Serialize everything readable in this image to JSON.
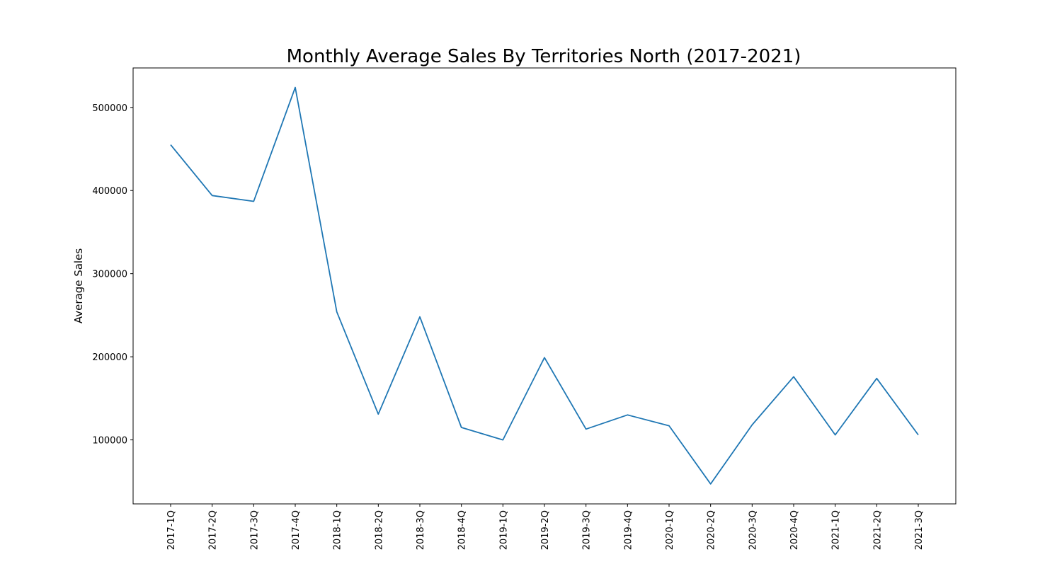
{
  "chart_data": {
    "type": "line",
    "title": "Monthly Average Sales By Territories North (2017-2021)",
    "xlabel": "",
    "ylabel": "Average Sales",
    "categories": [
      "2017-1Q",
      "2017-2Q",
      "2017-3Q",
      "2017-4Q",
      "2018-1Q",
      "2018-2Q",
      "2018-3Q",
      "2018-4Q",
      "2019-1Q",
      "2019-2Q",
      "2019-3Q",
      "2019-4Q",
      "2020-1Q",
      "2020-2Q",
      "2020-3Q",
      "2020-4Q",
      "2021-1Q",
      "2021-2Q",
      "2021-3Q"
    ],
    "series": [
      {
        "name": "Average Sales",
        "color": "#1f77b4",
        "values": [
          455000,
          394000,
          387000,
          524000,
          254000,
          131000,
          248000,
          115000,
          100000,
          199000,
          113000,
          130000,
          117000,
          47000,
          118000,
          176000,
          106000,
          174000,
          106000
        ]
      }
    ],
    "yticks": [
      100000,
      200000,
      300000,
      400000,
      500000
    ],
    "ytick_labels": [
      "100000",
      "200000",
      "300000",
      "400000",
      "500000"
    ],
    "ylim": [
      23000,
      547500
    ],
    "grid": false,
    "legend": "none"
  }
}
